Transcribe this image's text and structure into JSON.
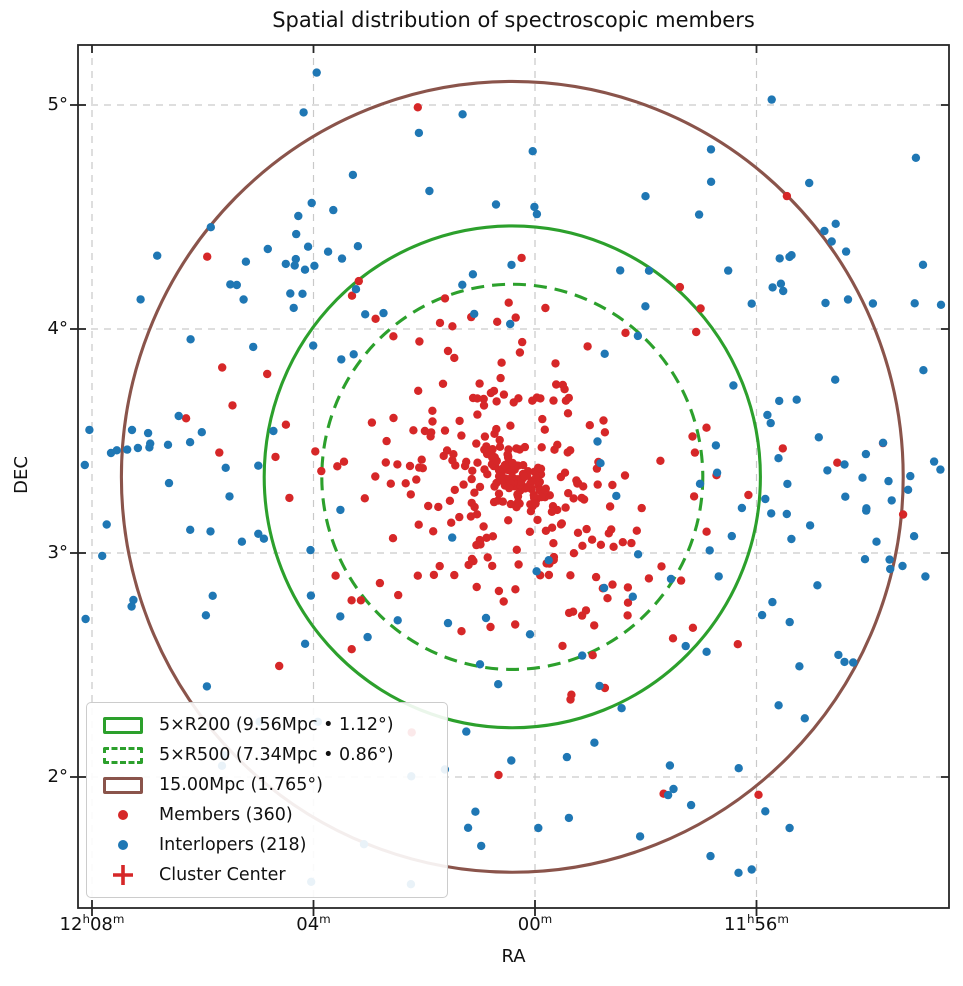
{
  "title": "Spatial distribution of spectroscopic members",
  "legend": {
    "items": [
      {
        "label": "5×R200 (9.56Mpc • 1.12°)",
        "swatch": "rect-outline",
        "color": "#2ca02c",
        "dashed": false
      },
      {
        "label": "5×R500 (7.34Mpc • 0.86°)",
        "swatch": "rect-outline",
        "color": "#2ca02c",
        "dashed": true
      },
      {
        "label": "15.00Mpc (1.765°)",
        "swatch": "rect-outline",
        "color": "#8a544b",
        "dashed": false
      },
      {
        "label": "Members (360)",
        "swatch": "dot",
        "color": "#d62728"
      },
      {
        "label": "Interlopers (218)",
        "swatch": "dot",
        "color": "#1f77b4"
      },
      {
        "label": "Cluster Center",
        "swatch": "plus",
        "color": "#d62728"
      }
    ]
  },
  "chart_data": {
    "type": "scatter",
    "title": "Spatial distribution of spectroscopic members",
    "xlabel": "RA",
    "ylabel": "DEC",
    "grid": {
      "visible": true,
      "style": "dashed",
      "color": "#c9c9c9"
    },
    "legend_position": "lower left",
    "x_axis": {
      "inverted_ra": true,
      "xlim_ra_minutes_from_12h": [
        8.25,
        -7.48
      ],
      "ticks": [
        {
          "label": "12h08m",
          "ra_minutes_from_12h": 8,
          "segments": [
            [
              "12",
              false
            ],
            [
              "h",
              true
            ],
            [
              "08",
              false
            ],
            [
              "m",
              true
            ]
          ]
        },
        {
          "label": "04m",
          "ra_minutes_from_12h": 4,
          "segments": [
            [
              "04",
              false
            ],
            [
              "m",
              true
            ]
          ]
        },
        {
          "label": "00m",
          "ra_minutes_from_12h": 0,
          "segments": [
            [
              "00",
              false
            ],
            [
              "m",
              true
            ]
          ]
        },
        {
          "label": "11h56m",
          "ra_minutes_from_12h": -4,
          "segments": [
            [
              "11",
              false
            ],
            [
              "h",
              true
            ],
            [
              "56",
              false
            ],
            [
              "m",
              true
            ]
          ]
        }
      ]
    },
    "y_axis": {
      "ylim_dec_deg": [
        1.41,
        5.28
      ],
      "ticks": [
        {
          "label": "5°",
          "dec_deg": 5
        },
        {
          "label": "4°",
          "dec_deg": 4
        },
        {
          "label": "3°",
          "dec_deg": 3
        },
        {
          "label": "2°",
          "dec_deg": 2
        }
      ]
    },
    "cluster_center": {
      "label": "Cluster Center",
      "ra_minutes_from_12h": 0.41,
      "dec_deg": 3.34,
      "marker": "plus",
      "color": "#d62728"
    },
    "circles": [
      {
        "name": "5xR200",
        "label": "5×R200 (9.56Mpc • 1.12°)",
        "radius_deg": 1.12,
        "radius_mpc": 9.56,
        "color": "#2ca02c",
        "linestyle": "solid"
      },
      {
        "name": "5xR500",
        "label": "5×R500 (7.34Mpc • 0.86°)",
        "radius_deg": 0.86,
        "radius_mpc": 7.34,
        "color": "#2ca02c",
        "linestyle": "dashed"
      },
      {
        "name": "15Mpc",
        "label": "15.00Mpc (1.765°)",
        "radius_deg": 1.765,
        "radius_mpc": 15.0,
        "color": "#8a544b",
        "linestyle": "solid"
      }
    ],
    "series": [
      {
        "name": "Members",
        "count": 360,
        "color": "#d62728",
        "marker_radius_px": 4.2,
        "model": {
          "seed": 20,
          "clip_r": 1.85,
          "components": [
            {
              "kind": "gauss",
              "n": 95,
              "du": 0.0,
              "dv": 0.0,
              "sigma_major": 0.09,
              "sigma_minor": 0.05,
              "angle_deg": -38
            },
            {
              "kind": "gauss",
              "n": 165,
              "du": 0.0,
              "dv": -0.02,
              "sigma_major": 0.34,
              "sigma_minor": 0.26,
              "angle_deg": -35
            },
            {
              "kind": "gauss",
              "n": 100,
              "du": 0.02,
              "dv": -0.12,
              "sigma_major": 0.72,
              "sigma_minor": 0.55,
              "angle_deg": -25
            }
          ]
        }
      },
      {
        "name": "Interlopers",
        "count": 218,
        "color": "#1f77b4",
        "marker_radius_px": 4.2,
        "model": {
          "seed": 7,
          "clip_r": 2.8,
          "components": [
            {
              "kind": "ring",
              "n": 118,
              "r_min": 0.35,
              "r_max": 2.1
            },
            {
              "kind": "gauss",
              "n": 16,
              "du": -0.97,
              "dv": 0.98,
              "sigma_major": 0.13,
              "sigma_minor": 0.1,
              "angle_deg": 0
            },
            {
              "kind": "gauss",
              "n": 12,
              "du": -1.6,
              "dv": 0.16,
              "sigma_major": 0.11,
              "sigma_minor": 0.09,
              "angle_deg": 0
            },
            {
              "kind": "gauss",
              "n": 22,
              "du": 1.45,
              "dv": 1.0,
              "sigma_major": 0.32,
              "sigma_minor": 0.3,
              "angle_deg": 0
            },
            {
              "kind": "gauss",
              "n": 15,
              "du": 1.62,
              "dv": -0.05,
              "sigma_major": 0.18,
              "sigma_minor": 0.28,
              "angle_deg": 0
            },
            {
              "kind": "ring",
              "n": 35,
              "r_min": 0.12,
              "r_max": 1.45
            }
          ]
        }
      }
    ],
    "colors": {
      "spine": "#262626",
      "tick_text": "#111111",
      "grid": "#c9c9c9"
    }
  }
}
